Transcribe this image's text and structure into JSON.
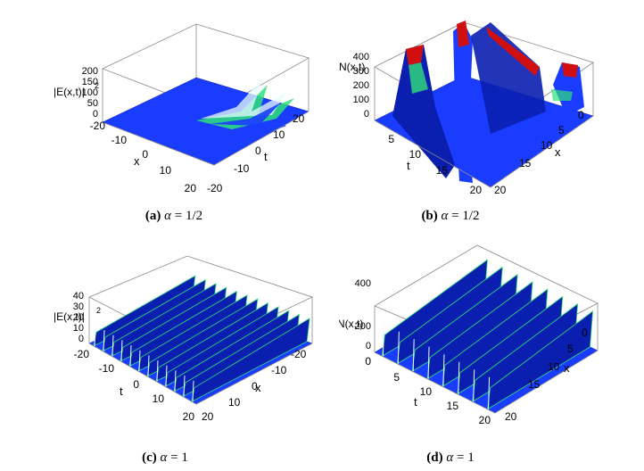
{
  "figure": {
    "panels": [
      {
        "id": "a",
        "caption": {
          "tag": "(a)",
          "symbol": "α",
          "value": "= 1/2"
        },
        "zlabel": "|E(x,t)|",
        "zlabel_sup": "2",
        "ztick": [
          "200",
          "150",
          "100",
          "50",
          "0"
        ],
        "axis1_label": "x",
        "axis1_ticks": [
          "-20",
          "-10",
          "0",
          "10",
          "20"
        ],
        "axis2_label": "t",
        "axis2_ticks": [
          "20",
          "10",
          "0",
          "-10",
          "-20"
        ]
      },
      {
        "id": "b",
        "caption": {
          "tag": "(b)",
          "symbol": "α",
          "value": "= 1/2"
        },
        "zlabel": "N(x,t)",
        "zlabel_sup": "",
        "ztick": [
          "400",
          "300",
          "200",
          "100",
          "0"
        ],
        "axis1_label": "t",
        "axis1_ticks": [
          "5",
          "10",
          "15",
          "20"
        ],
        "axis2_label": "x",
        "axis2_ticks": [
          "0",
          "5",
          "10",
          "15",
          "20"
        ]
      },
      {
        "id": "c",
        "caption": {
          "tag": "(c)",
          "symbol": "α",
          "value": "= 1"
        },
        "zlabel": "|E(x,t)|",
        "zlabel_sup": "2",
        "ztick": [
          "40",
          "30",
          "20",
          "10",
          "0"
        ],
        "axis1_label": "t",
        "axis1_ticks": [
          "-20",
          "-10",
          "0",
          "10",
          "20"
        ],
        "axis2_label": "x",
        "axis2_ticks": [
          "-20",
          "-10",
          "0",
          "10",
          "20"
        ]
      },
      {
        "id": "d",
        "caption": {
          "tag": "(d)",
          "symbol": "α",
          "value": "= 1"
        },
        "zlabel": "N(x,t)",
        "zlabel_sup": "",
        "ztick": [
          "400",
          "200",
          "0"
        ],
        "axis1_label": "t",
        "axis1_ticks": [
          "0",
          "5",
          "10",
          "15",
          "20"
        ],
        "axis2_label": "x",
        "axis2_ticks": [
          "0",
          "5",
          "10",
          "15",
          "20"
        ]
      }
    ],
    "colors": {
      "surface": "#1a3cff",
      "surface_dark": "#0a1fb0",
      "peak_green": "#2fe07a",
      "peak_white": "#e8fbff",
      "peak_red": "#d01010",
      "box": "#8a8a8a"
    }
  }
}
